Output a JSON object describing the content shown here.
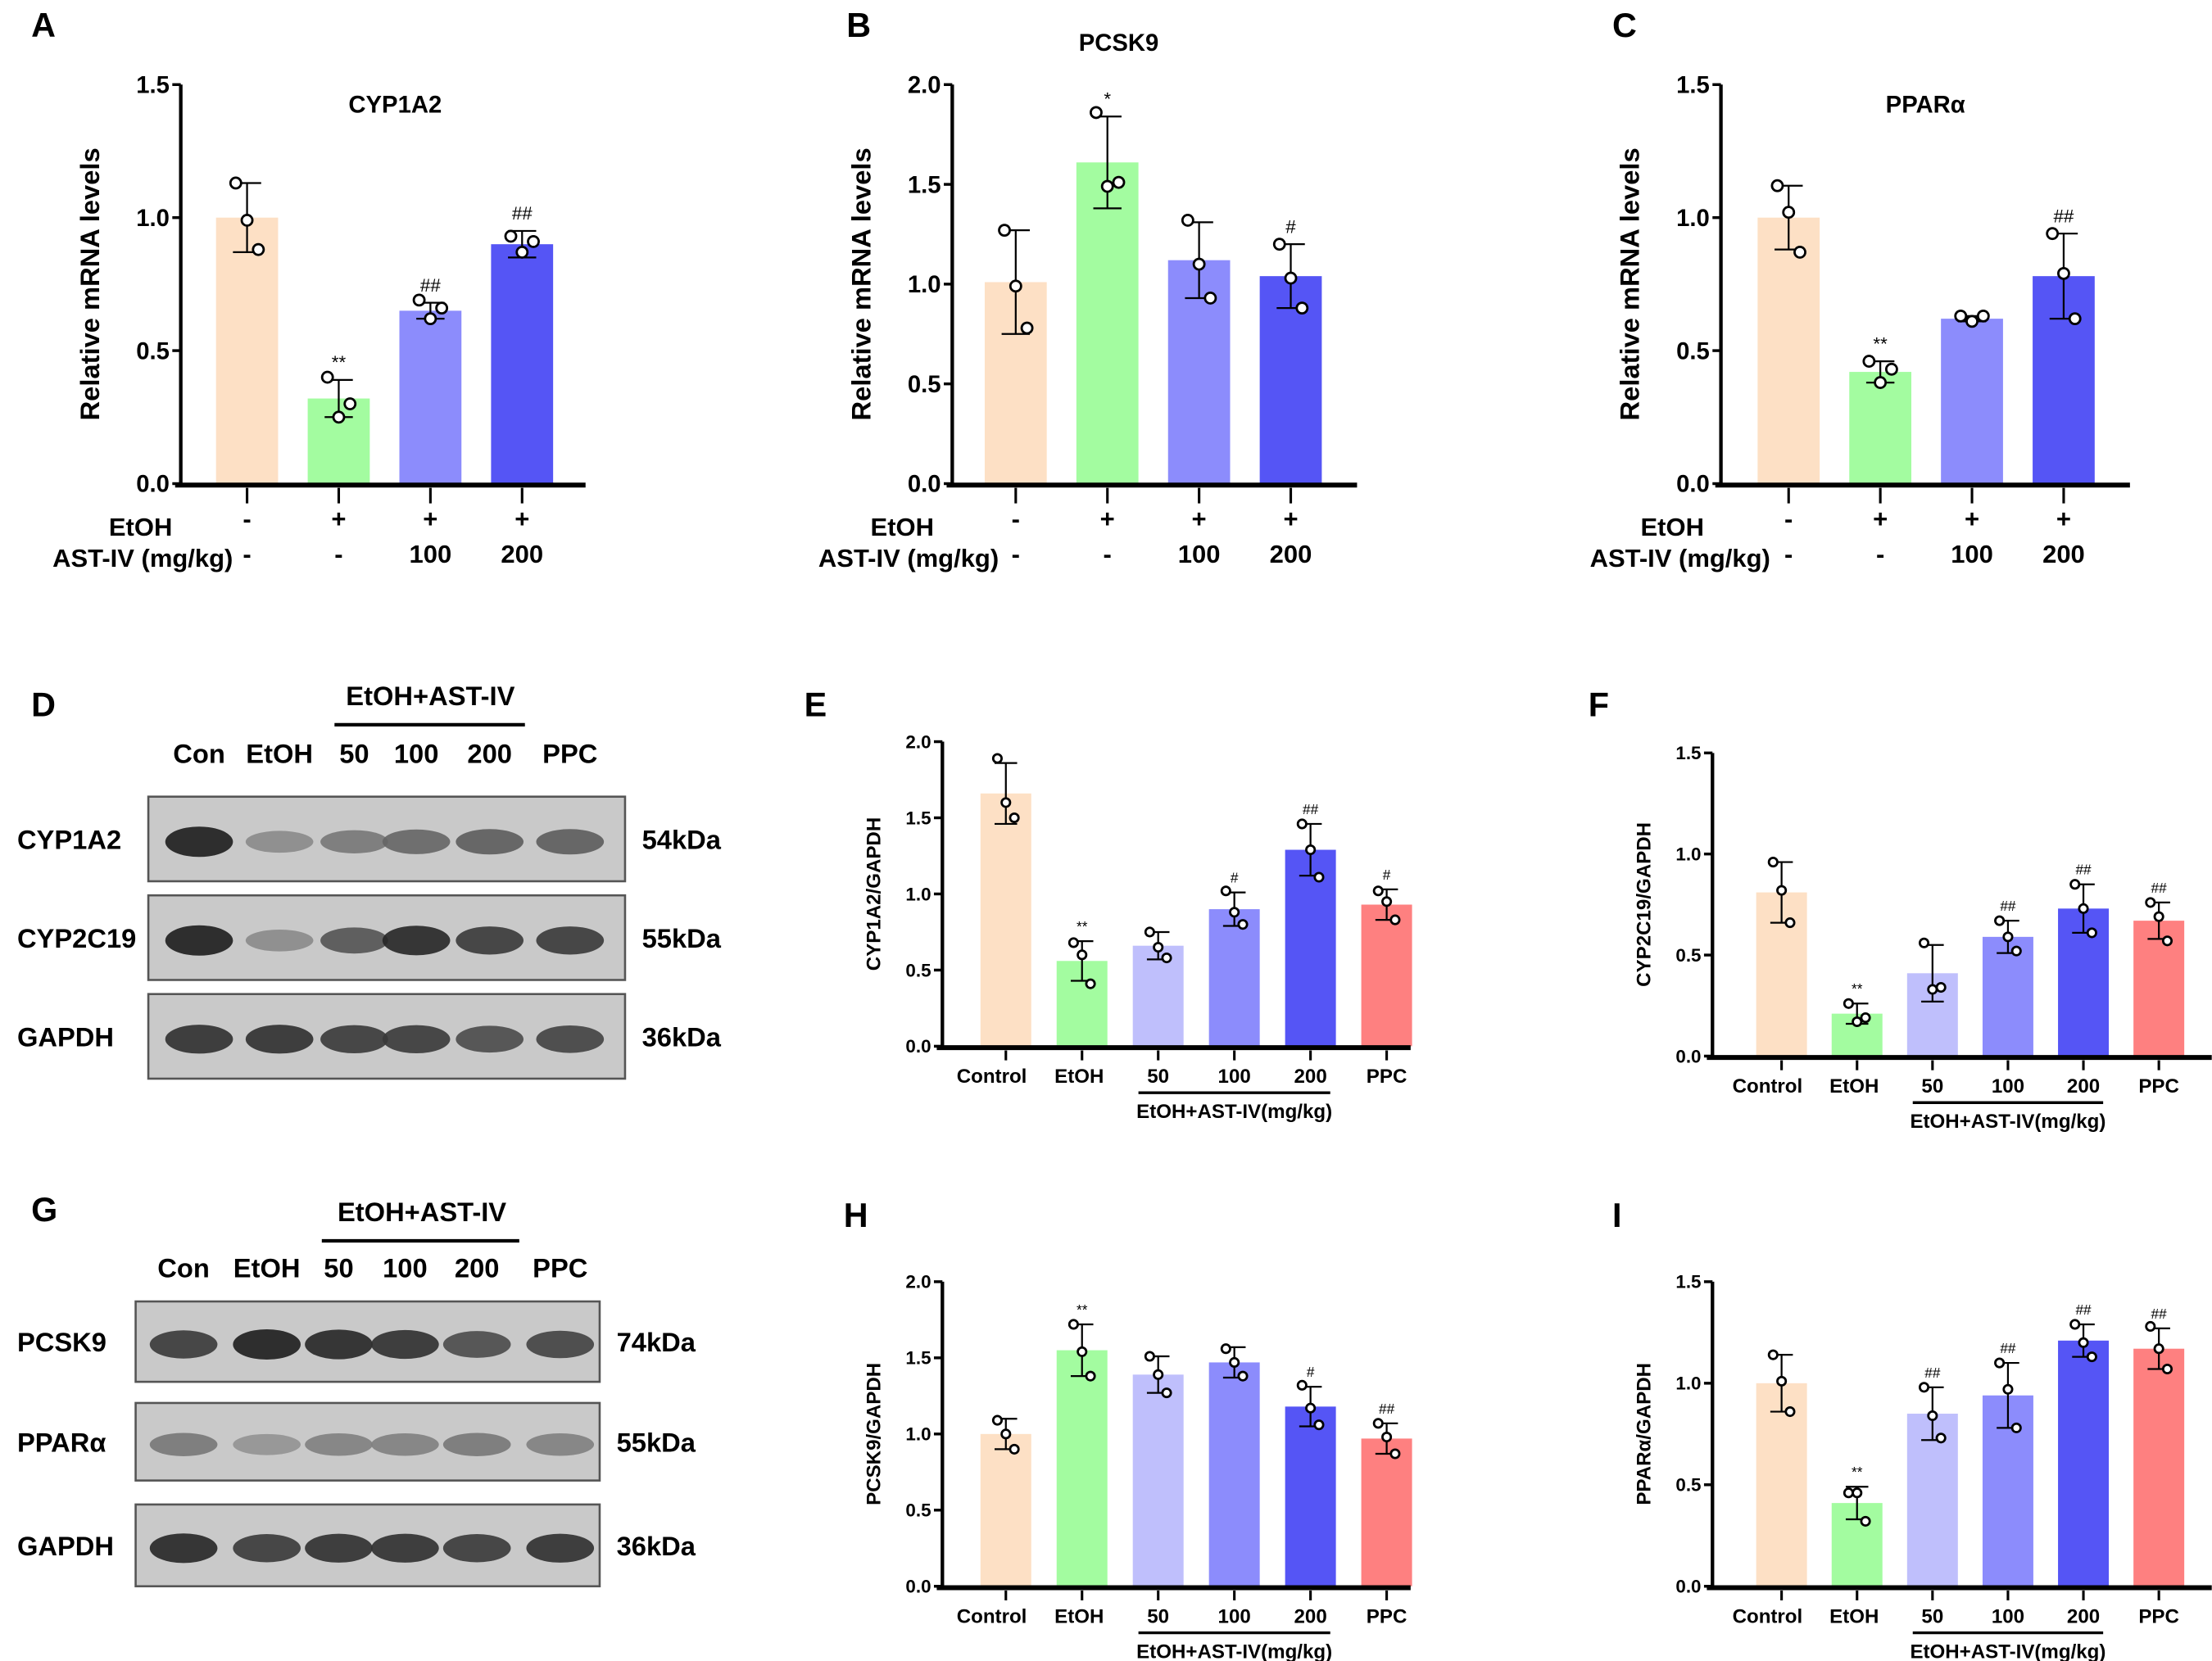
{
  "colors": {
    "control": "#fde0c5",
    "etoh": "#a3fca0",
    "ast50": "#bfbffc",
    "ast100": "#8c8cfc",
    "ast200": "#5555f5",
    "ppc": "#fe8080"
  },
  "chart_data": [
    {
      "id": "A",
      "panel_letter": "A",
      "type": "bar",
      "title": "CYP1A2",
      "ylabel": "Relative mRNA levels",
      "ylim": [
        0,
        1.5
      ],
      "yticks": [
        "0.0",
        "0.5",
        "1.0",
        "1.5"
      ],
      "row_labels": [
        "EtOH",
        "AST-IV (mg/kg)"
      ],
      "rows": [
        [
          "-",
          "+",
          "+",
          "+"
        ],
        [
          "-",
          "-",
          "100",
          "200"
        ]
      ],
      "values": [
        1.0,
        0.32,
        0.65,
        0.9
      ],
      "errors": [
        0.13,
        0.07,
        0.03,
        0.05
      ],
      "points": [
        [
          1.13,
          0.99,
          0.88
        ],
        [
          0.4,
          0.25,
          0.3
        ],
        [
          0.69,
          0.62,
          0.66
        ],
        [
          0.93,
          0.87,
          0.91
        ]
      ],
      "significance": [
        "",
        "**",
        "##",
        "##"
      ],
      "color_keys": [
        "control",
        "etoh",
        "ast100",
        "ast200"
      ]
    },
    {
      "id": "B",
      "panel_letter": "B",
      "type": "bar",
      "title": "PCSK9",
      "ylabel": "Relative mRNA levels",
      "ylim": [
        0,
        2.0
      ],
      "yticks": [
        "0.0",
        "0.5",
        "1.0",
        "1.5",
        "2.0"
      ],
      "row_labels": [
        "EtOH",
        "AST-IV (mg/kg)"
      ],
      "rows": [
        [
          "-",
          "+",
          "+",
          "+"
        ],
        [
          "-",
          "-",
          "100",
          "200"
        ]
      ],
      "values": [
        1.01,
        1.61,
        1.12,
        1.04
      ],
      "errors": [
        0.26,
        0.23,
        0.19,
        0.16
      ],
      "points": [
        [
          1.27,
          0.99,
          0.78
        ],
        [
          1.86,
          1.49,
          1.51
        ],
        [
          1.32,
          1.1,
          0.93
        ],
        [
          1.2,
          1.03,
          0.88
        ]
      ],
      "significance": [
        "",
        "*",
        "",
        "#"
      ],
      "color_keys": [
        "control",
        "etoh",
        "ast100",
        "ast200"
      ]
    },
    {
      "id": "C",
      "panel_letter": "C",
      "type": "bar",
      "title": "PPARα",
      "ylabel": "Relative mRNA levels",
      "ylim": [
        0,
        1.5
      ],
      "yticks": [
        "0.0",
        "0.5",
        "1.0",
        "1.5"
      ],
      "row_labels": [
        "EtOH",
        "AST-IV (mg/kg)"
      ],
      "rows": [
        [
          "-",
          "+",
          "+",
          "+"
        ],
        [
          "-",
          "-",
          "100",
          "200"
        ]
      ],
      "values": [
        1.0,
        0.42,
        0.62,
        0.78
      ],
      "errors": [
        0.12,
        0.04,
        0.01,
        0.16
      ],
      "points": [
        [
          1.12,
          1.02,
          0.87
        ],
        [
          0.46,
          0.38,
          0.43
        ],
        [
          0.63,
          0.61,
          0.63
        ],
        [
          0.94,
          0.79,
          0.62
        ]
      ],
      "significance": [
        "",
        "**",
        "",
        "##"
      ],
      "color_keys": [
        "control",
        "etoh",
        "ast100",
        "ast200"
      ]
    },
    {
      "id": "E",
      "panel_letter": "E",
      "type": "bar",
      "ylabel": "CYP1A2/GAPDH",
      "ylim": [
        0,
        2.0
      ],
      "yticks": [
        "0.0",
        "0.5",
        "1.0",
        "1.5",
        "2.0"
      ],
      "categories": [
        "Control",
        "EtOH",
        "50",
        "100",
        "200",
        "PPC"
      ],
      "group_label": "EtOH+AST-IV(mg/kg)",
      "values": [
        1.66,
        0.56,
        0.66,
        0.9,
        1.29,
        0.93
      ],
      "errors": [
        0.2,
        0.13,
        0.09,
        0.11,
        0.17,
        0.1
      ],
      "points": [
        [
          1.89,
          1.6,
          1.5
        ],
        [
          0.68,
          0.6,
          0.41
        ],
        [
          0.75,
          0.65,
          0.58
        ],
        [
          1.02,
          0.88,
          0.8
        ],
        [
          1.46,
          1.29,
          1.11
        ],
        [
          1.02,
          0.95,
          0.83
        ]
      ],
      "significance": [
        "",
        "**",
        "",
        "#",
        "##",
        "#"
      ],
      "color_keys": [
        "control",
        "etoh",
        "ast50",
        "ast100",
        "ast200",
        "ppc"
      ]
    },
    {
      "id": "F",
      "panel_letter": "F",
      "type": "bar",
      "ylabel": "CYP2C19/GAPDH",
      "ylim": [
        0,
        1.5
      ],
      "yticks": [
        "0.0",
        "0.5",
        "1.0",
        "1.5"
      ],
      "categories": [
        "Control",
        "EtOH",
        "50",
        "100",
        "200",
        "PPC"
      ],
      "group_label": "EtOH+AST-IV(mg/kg)",
      "values": [
        0.81,
        0.21,
        0.41,
        0.59,
        0.73,
        0.67
      ],
      "errors": [
        0.15,
        0.05,
        0.14,
        0.08,
        0.12,
        0.09
      ],
      "points": [
        [
          0.96,
          0.82,
          0.66
        ],
        [
          0.26,
          0.17,
          0.19
        ],
        [
          0.56,
          0.33,
          0.34
        ],
        [
          0.67,
          0.59,
          0.52
        ],
        [
          0.85,
          0.73,
          0.61
        ],
        [
          0.76,
          0.69,
          0.57
        ]
      ],
      "significance": [
        "",
        "**",
        "",
        "##",
        "##",
        "##"
      ],
      "color_keys": [
        "control",
        "etoh",
        "ast50",
        "ast100",
        "ast200",
        "ppc"
      ]
    },
    {
      "id": "H",
      "panel_letter": "H",
      "type": "bar",
      "ylabel": "PCSK9/GAPDH",
      "ylim": [
        0,
        2.0
      ],
      "yticks": [
        "0.0",
        "0.5",
        "1.0",
        "1.5",
        "2.0"
      ],
      "categories": [
        "Control",
        "EtOH",
        "50",
        "100",
        "200",
        "PPC"
      ],
      "group_label": "EtOH+AST-IV(mg/kg)",
      "values": [
        1.0,
        1.55,
        1.39,
        1.47,
        1.18,
        0.97
      ],
      "errors": [
        0.1,
        0.17,
        0.12,
        0.1,
        0.13,
        0.1
      ],
      "points": [
        [
          1.09,
          1.0,
          0.9
        ],
        [
          1.72,
          1.54,
          1.38
        ],
        [
          1.51,
          1.39,
          1.27
        ],
        [
          1.56,
          1.47,
          1.38
        ],
        [
          1.32,
          1.17,
          1.06
        ],
        [
          1.07,
          0.98,
          0.87
        ]
      ],
      "significance": [
        "",
        "**",
        "",
        "",
        "#",
        "##"
      ],
      "color_keys": [
        "control",
        "etoh",
        "ast50",
        "ast100",
        "ast200",
        "ppc"
      ]
    },
    {
      "id": "I",
      "panel_letter": "I",
      "type": "bar",
      "ylabel": "PPARα/GAPDH",
      "ylim": [
        0,
        1.5
      ],
      "yticks": [
        "0.0",
        "0.5",
        "1.0",
        "1.5"
      ],
      "categories": [
        "Control",
        "EtOH",
        "50",
        "100",
        "200",
        "PPC"
      ],
      "group_label": "EtOH+AST-IV(mg/kg)",
      "values": [
        1.0,
        0.41,
        0.85,
        0.94,
        1.21,
        1.17
      ],
      "errors": [
        0.14,
        0.08,
        0.13,
        0.16,
        0.08,
        0.1
      ],
      "points": [
        [
          1.14,
          1.01,
          0.86
        ],
        [
          0.46,
          0.46,
          0.32
        ],
        [
          0.98,
          0.84,
          0.73
        ],
        [
          1.1,
          0.97,
          0.78
        ],
        [
          1.29,
          1.2,
          1.13
        ],
        [
          1.28,
          1.17,
          1.07
        ]
      ],
      "significance": [
        "",
        "**",
        "##",
        "##",
        "##",
        "##"
      ],
      "color_keys": [
        "control",
        "etoh",
        "ast50",
        "ast100",
        "ast200",
        "ppc"
      ]
    }
  ],
  "blots": [
    {
      "id": "D",
      "panel_letter": "D",
      "group_label": "EtOH+AST-IV",
      "lanes": [
        "Con",
        "EtOH",
        "50",
        "100",
        "200",
        "PPC"
      ],
      "rows": [
        {
          "protein": "CYP1A2",
          "size": "54kDa",
          "band_intensity": [
            0.95,
            0.35,
            0.45,
            0.55,
            0.6,
            0.6
          ]
        },
        {
          "protein": "CYP2C19",
          "size": "55kDa",
          "band_intensity": [
            0.95,
            0.35,
            0.65,
            0.9,
            0.8,
            0.8
          ]
        },
        {
          "protein": "GAPDH",
          "size": "36kDa",
          "band_intensity": [
            0.85,
            0.85,
            0.8,
            0.8,
            0.7,
            0.75
          ]
        }
      ]
    },
    {
      "id": "G",
      "panel_letter": "G",
      "group_label": "EtOH+AST-IV",
      "lanes": [
        "Con",
        "EtOH",
        "50",
        "100",
        "200",
        "PPC"
      ],
      "rows": [
        {
          "protein": "PCSK9",
          "size": "74kDa",
          "band_intensity": [
            0.8,
            0.95,
            0.9,
            0.85,
            0.7,
            0.75
          ]
        },
        {
          "protein": "PPARα",
          "size": "55kDa",
          "band_intensity": [
            0.45,
            0.3,
            0.4,
            0.4,
            0.45,
            0.4
          ]
        },
        {
          "protein": "GAPDH",
          "size": "36kDa",
          "band_intensity": [
            0.9,
            0.8,
            0.85,
            0.85,
            0.8,
            0.85
          ]
        }
      ]
    }
  ]
}
